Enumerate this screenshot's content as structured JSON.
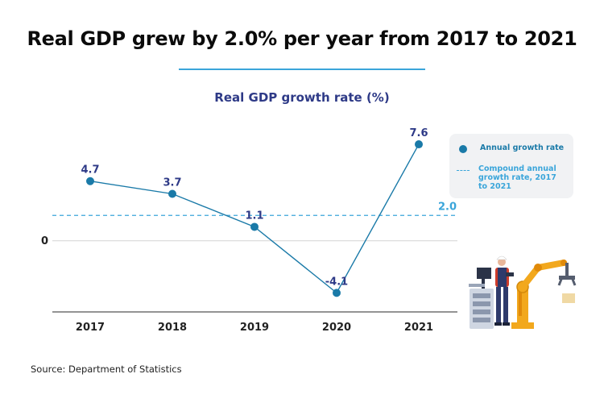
{
  "headline": "Real GDP grew by 2.0% per year from 2017 to 2021",
  "source": "Source: Department of Statistics",
  "colors": {
    "series": "#1a7aa8",
    "label": "#2e3a87",
    "reference": "#3aa5da",
    "axis": "#555555"
  },
  "legend": {
    "series_label": "Annual growth rate",
    "reference_label": "Compound annual growth rate, 2017 to 2021"
  },
  "illustration": {
    "icon": "factory-worker-robot-arm-icon"
  },
  "chart_data": {
    "type": "line",
    "title": "Real GDP growth rate (%)",
    "xlabel": "",
    "ylabel": "",
    "categories": [
      "2017",
      "2018",
      "2019",
      "2020",
      "2021"
    ],
    "series": [
      {
        "name": "Annual growth rate",
        "values": [
          4.7,
          3.7,
          1.1,
          -4.1,
          7.6
        ]
      }
    ],
    "reference_line": {
      "name": "Compound annual growth rate, 2017 to 2021",
      "value": 2.0,
      "label": "2.0"
    },
    "y_ticks": [
      0
    ],
    "y_tick_labels": [
      "0"
    ],
    "ylim": [
      -5.6,
      9.0
    ],
    "grid": false,
    "legend_position": "right"
  }
}
